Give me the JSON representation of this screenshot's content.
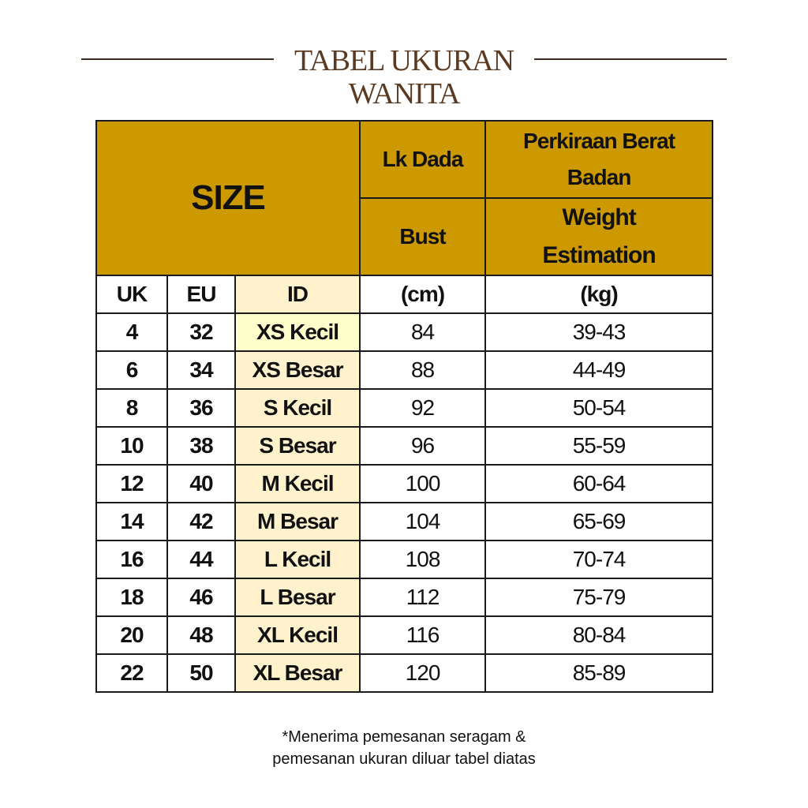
{
  "title": {
    "line1": "TABEL UKURAN",
    "line2": "WANITA"
  },
  "header": {
    "size": "SIZE",
    "lk_dada": "Lk Dada",
    "berat": "Perkiraan Berat Badan",
    "bust": "Bust",
    "weight": "Weight Estimation"
  },
  "columns": [
    "UK",
    "EU",
    "ID",
    "(cm)",
    "(kg)"
  ],
  "rows": [
    [
      "4",
      "32",
      "XS Kecil",
      "84",
      "39-43"
    ],
    [
      "6",
      "34",
      "XS Besar",
      "88",
      "44-49"
    ],
    [
      "8",
      "36",
      "S Kecil",
      "92",
      "50-54"
    ],
    [
      "10",
      "38",
      "S Besar",
      "96",
      "55-59"
    ],
    [
      "12",
      "40",
      "M Kecil",
      "100",
      "60-64"
    ],
    [
      "14",
      "42",
      "M Besar",
      "104",
      "65-69"
    ],
    [
      "16",
      "44",
      "L Kecil",
      "108",
      "70-74"
    ],
    [
      "18",
      "46",
      "L Besar",
      "112",
      "75-79"
    ],
    [
      "20",
      "48",
      "XL Kecil",
      "116",
      "80-84"
    ],
    [
      "22",
      "50",
      "XL Besar",
      "120",
      "85-89"
    ]
  ],
  "note": {
    "line1": "*Menerima pemesanan seragam &",
    "line2": "pemesanan ukuran diluar tabel diatas"
  },
  "colors": {
    "header": "#cc9900",
    "id_column": "#fff2cc",
    "title": "#5a3a22"
  }
}
